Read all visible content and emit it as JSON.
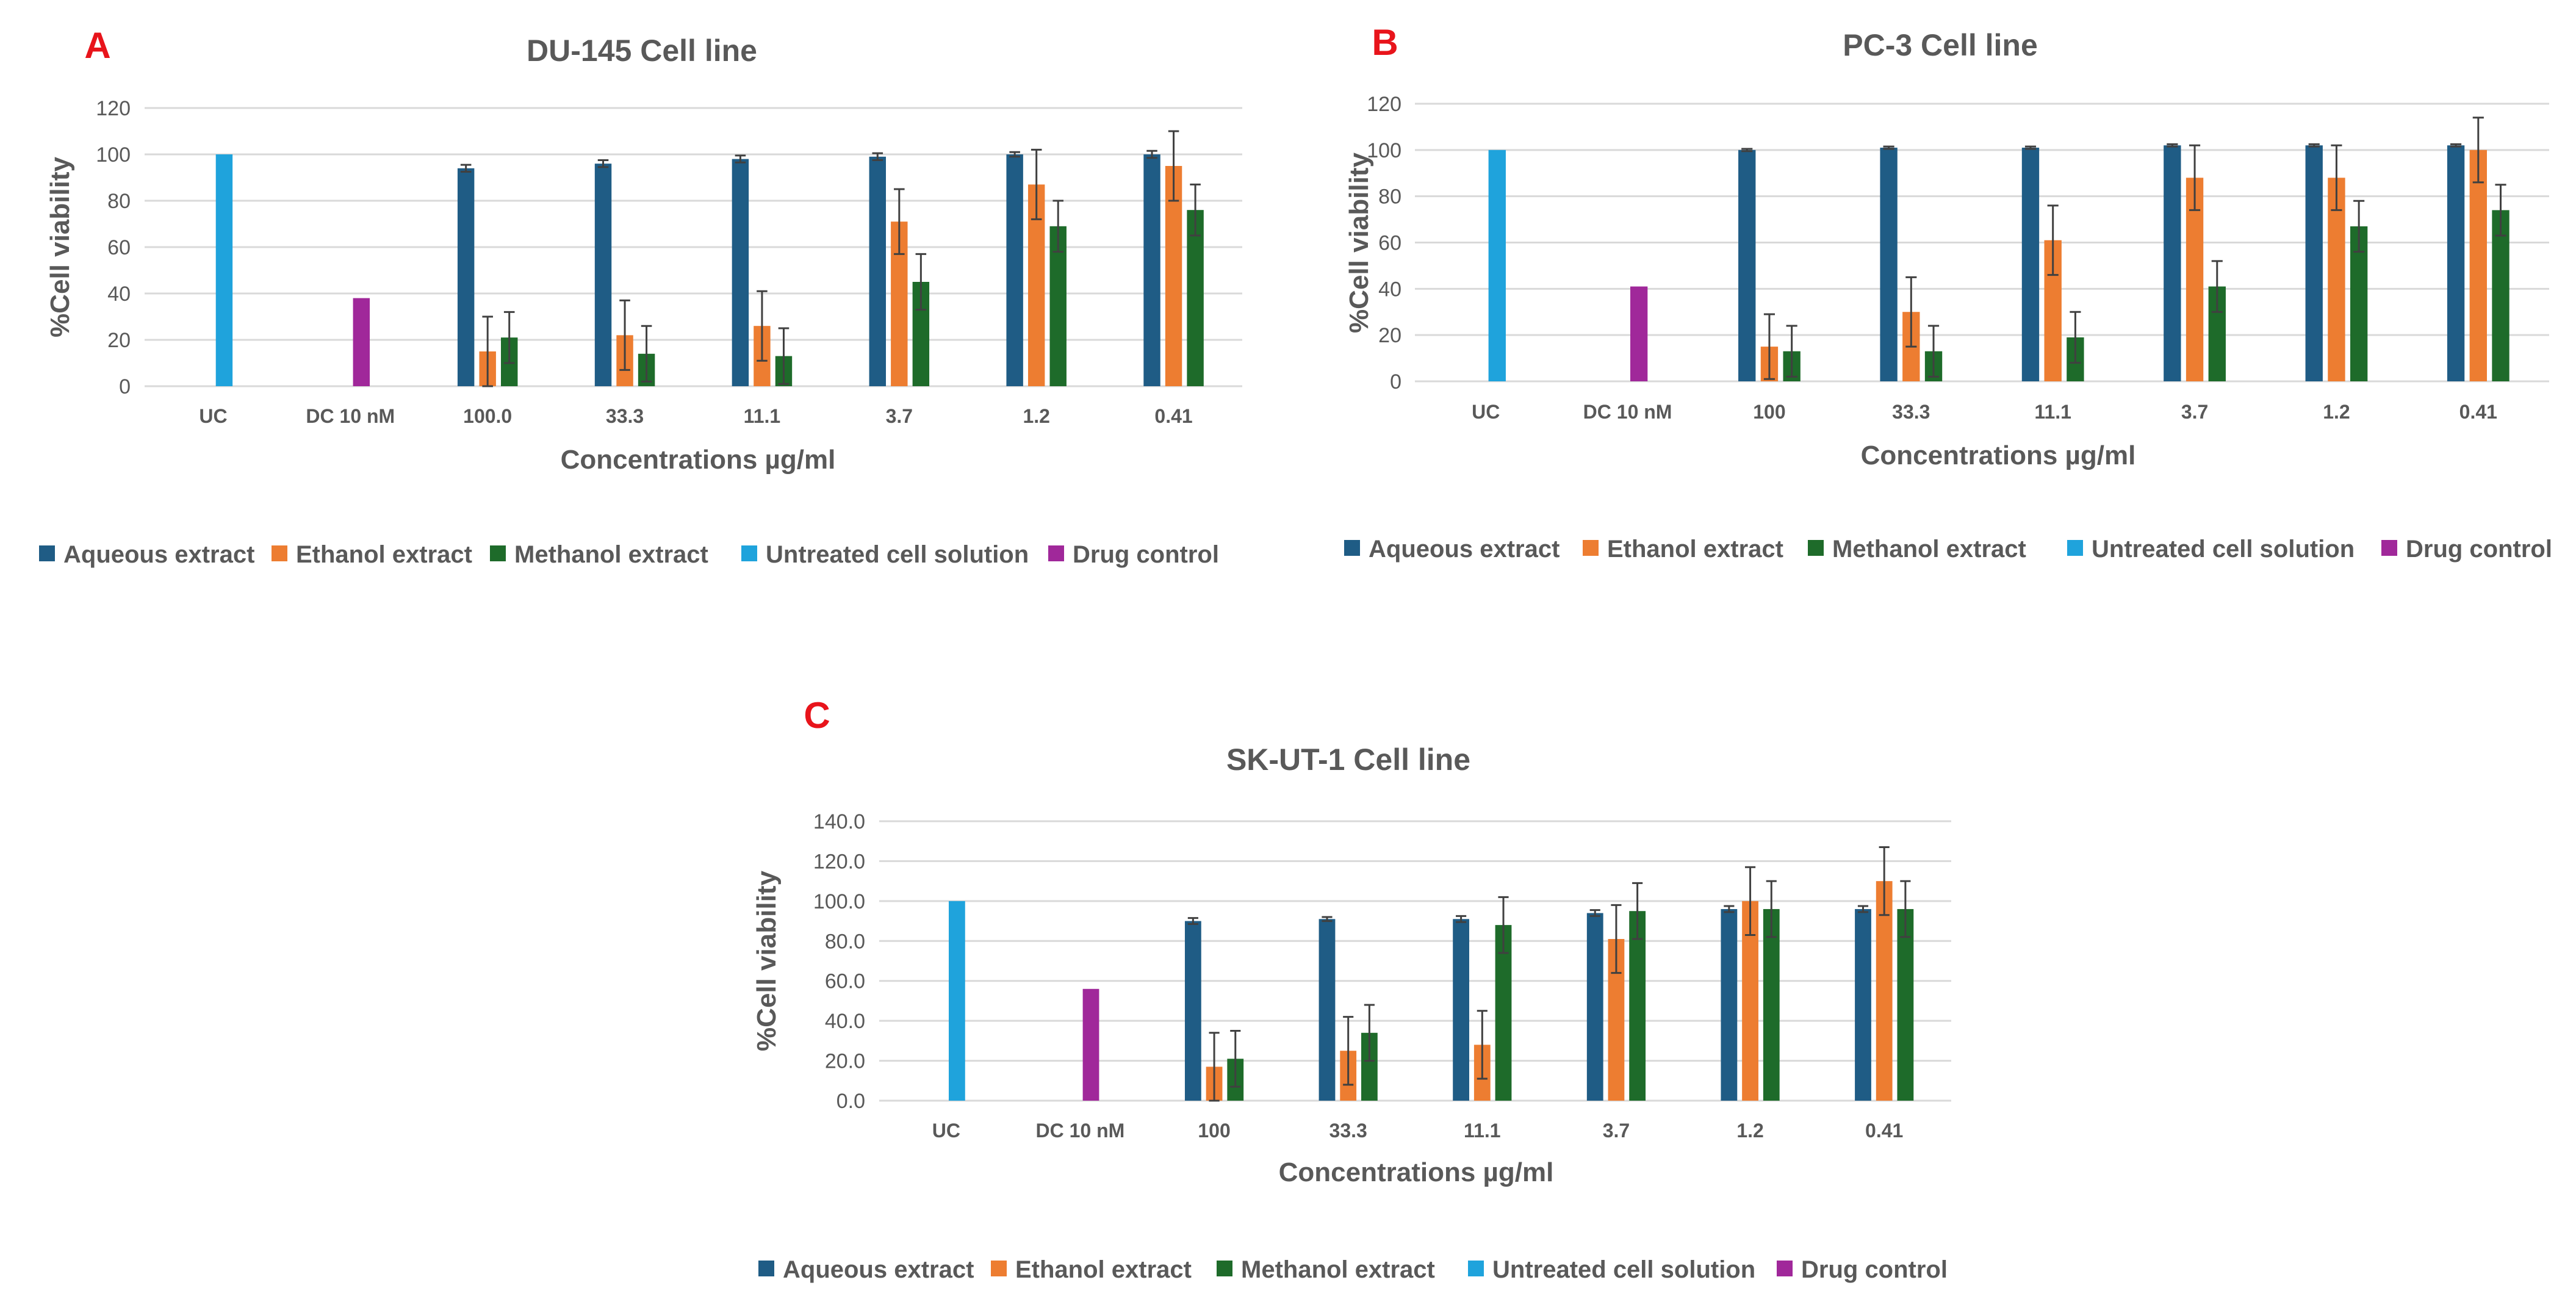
{
  "colors": {
    "aqueous": "#1F5C85",
    "ethanol": "#ED7D31",
    "methanol": "#1E6B2A",
    "untreated": "#1FA3DC",
    "drug": "#A0289A",
    "panel_letter": "#E8141B",
    "gridline": "#D9D9D9",
    "text": "#595959"
  },
  "legend_entries": [
    "Aqueous extract",
    "Ethanol extract",
    "Methanol extract",
    "Untreated cell solution",
    "Drug control"
  ],
  "chart_data": [
    {
      "panel": "A",
      "type": "bar",
      "title": "DU-145 Cell line",
      "xlabel": "Concentrations µg/ml",
      "ylabel": "%Cell viability",
      "ylim": [
        0,
        120
      ],
      "yticks": [
        "0",
        "20",
        "40",
        "60",
        "80",
        "100",
        "120"
      ],
      "categories": [
        "UC",
        "DC 10 nM",
        "100.0",
        "33.3",
        "11.1",
        "3.7",
        "1.2",
        "0.41"
      ],
      "grid": true,
      "legend": "bottom",
      "series": [
        {
          "name": "Aqueous extract",
          "values": [
            null,
            null,
            94,
            96,
            98,
            99,
            100,
            100
          ],
          "errors": [
            null,
            null,
            1.5,
            1.5,
            1.5,
            1.5,
            1,
            1.5
          ]
        },
        {
          "name": "Ethanol extract",
          "values": [
            null,
            null,
            15,
            22,
            26,
            71,
            87,
            95
          ],
          "errors": [
            null,
            null,
            15,
            15,
            15,
            14,
            15,
            15
          ]
        },
        {
          "name": "Methanol extract",
          "values": [
            null,
            null,
            21,
            14,
            13,
            45,
            69,
            76
          ],
          "errors": [
            null,
            null,
            11,
            12,
            12,
            12,
            11,
            11
          ]
        },
        {
          "name": "Untreated cell solution",
          "values": [
            100,
            null,
            null,
            null,
            null,
            null,
            null,
            null
          ],
          "errors": [
            null,
            null,
            null,
            null,
            null,
            null,
            null,
            null
          ]
        },
        {
          "name": "Drug control",
          "values": [
            null,
            38,
            null,
            null,
            null,
            null,
            null,
            null
          ],
          "errors": [
            null,
            null,
            null,
            null,
            null,
            null,
            null,
            null
          ]
        }
      ]
    },
    {
      "panel": "B",
      "type": "bar",
      "title": "PC-3 Cell line",
      "xlabel": "Concentrations µg/ml",
      "ylabel": "%Cell viability",
      "ylim": [
        0,
        120
      ],
      "yticks": [
        "0",
        "20",
        "40",
        "60",
        "80",
        "100",
        "120"
      ],
      "categories": [
        "UC",
        "DC 10 nM",
        "100",
        "33.3",
        "11.1",
        "3.7",
        "1.2",
        "0.41"
      ],
      "grid": true,
      "legend": "bottom",
      "series": [
        {
          "name": "Aqueous extract",
          "values": [
            null,
            null,
            100,
            101,
            101,
            102,
            102,
            102
          ],
          "errors": [
            null,
            null,
            0.5,
            0.5,
            0.5,
            0.5,
            0.5,
            0.5
          ]
        },
        {
          "name": "Ethanol extract",
          "values": [
            null,
            null,
            15,
            30,
            61,
            88,
            88,
            100
          ],
          "errors": [
            null,
            null,
            14,
            15,
            15,
            14,
            14,
            14
          ]
        },
        {
          "name": "Methanol extract",
          "values": [
            null,
            null,
            13,
            13,
            19,
            41,
            67,
            74
          ],
          "errors": [
            null,
            null,
            11,
            11,
            11,
            11,
            11,
            11
          ]
        },
        {
          "name": "Untreated cell solution",
          "values": [
            100,
            null,
            null,
            null,
            null,
            null,
            null,
            null
          ],
          "errors": [
            null,
            null,
            null,
            null,
            null,
            null,
            null,
            null
          ]
        },
        {
          "name": "Drug control",
          "values": [
            null,
            41,
            null,
            null,
            null,
            null,
            null,
            null
          ],
          "errors": [
            null,
            null,
            null,
            null,
            null,
            null,
            null,
            null
          ]
        }
      ]
    },
    {
      "panel": "C",
      "type": "bar",
      "title": "SK-UT-1 Cell line",
      "xlabel": "Concentrations µg/ml",
      "ylabel": "%Cell viability",
      "ylim": [
        0,
        140
      ],
      "yticks": [
        "0.0",
        "20.0",
        "40.0",
        "60.0",
        "80.0",
        "100.0",
        "120.0",
        "140.0"
      ],
      "categories": [
        "UC",
        "DC 10 nM",
        "100",
        "33.3",
        "11.1",
        "3.7",
        "1.2",
        "0.41"
      ],
      "grid": true,
      "legend": "bottom",
      "series": [
        {
          "name": "Aqueous extract",
          "values": [
            null,
            null,
            90,
            91,
            91,
            94,
            96,
            96
          ],
          "errors": [
            null,
            null,
            1.5,
            1,
            1.5,
            1.5,
            1.5,
            1.5
          ]
        },
        {
          "name": "Ethanol extract",
          "values": [
            null,
            null,
            17,
            25,
            28,
            81,
            100,
            110
          ],
          "errors": [
            null,
            null,
            17,
            17,
            17,
            17,
            17,
            17
          ]
        },
        {
          "name": "Methanol extract",
          "values": [
            null,
            null,
            21,
            34,
            88,
            95,
            96,
            96
          ],
          "errors": [
            null,
            null,
            14,
            14,
            14,
            14,
            14,
            14
          ]
        },
        {
          "name": "Untreated cell solution",
          "values": [
            100,
            null,
            null,
            null,
            null,
            null,
            null,
            null
          ],
          "errors": [
            null,
            null,
            null,
            null,
            null,
            null,
            null,
            null
          ]
        },
        {
          "name": "Drug control",
          "values": [
            null,
            56,
            null,
            null,
            null,
            null,
            null,
            null
          ],
          "errors": [
            null,
            null,
            null,
            null,
            null,
            null,
            null,
            null
          ]
        }
      ]
    }
  ]
}
